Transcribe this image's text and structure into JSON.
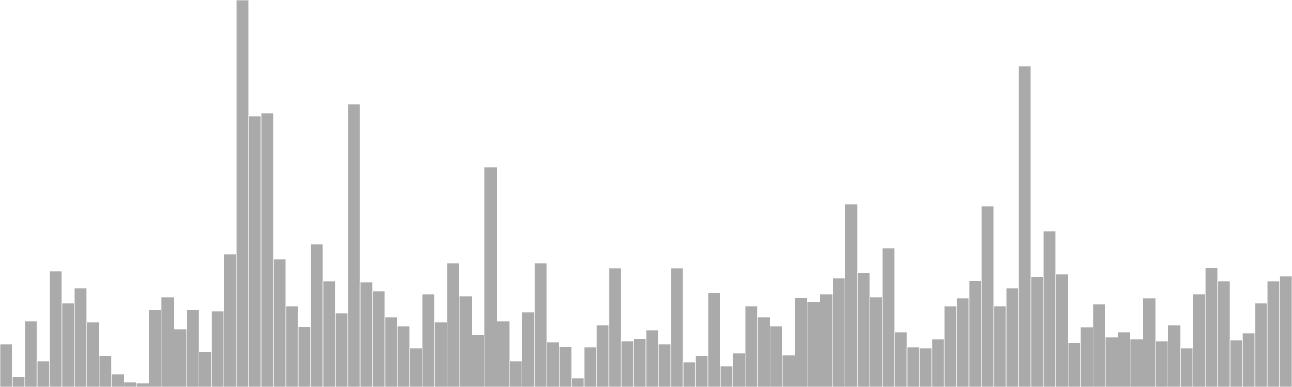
{
  "chart_data": {
    "type": "bar",
    "title": "",
    "xlabel": "",
    "ylabel": "",
    "bar_color": "#aaaaaa",
    "bar_stroke": "#ffffff",
    "grid": false,
    "legend": "none",
    "ylim": [
      0,
      480
    ],
    "values": [
      53,
      13,
      82,
      32,
      144,
      104,
      123,
      80,
      39,
      16,
      6,
      5,
      96,
      112,
      72,
      96,
      44,
      94,
      165,
      480,
      336,
      340,
      159,
      100,
      75,
      177,
      131,
      92,
      351,
      130,
      119,
      87,
      76,
      48,
      115,
      80,
      154,
      113,
      65,
      273,
      82,
      32,
      93,
      154,
      56,
      50,
      11,
      49,
      77,
      147,
      57,
      60,
      71,
      53,
      147,
      31,
      39,
      117,
      26,
      42,
      100,
      87,
      76,
      40,
      111,
      106,
      115,
      135,
      227,
      142,
      112,
      172,
      68,
      49,
      48,
      59,
      100,
      110,
      132,
      224,
      100,
      123,
      398,
      137,
      193,
      140,
      55,
      74,
      103,
      62,
      68,
      59,
      110,
      57,
      77,
      48,
      115,
      148,
      131,
      58,
      67,
      104,
      131,
      138
    ]
  }
}
